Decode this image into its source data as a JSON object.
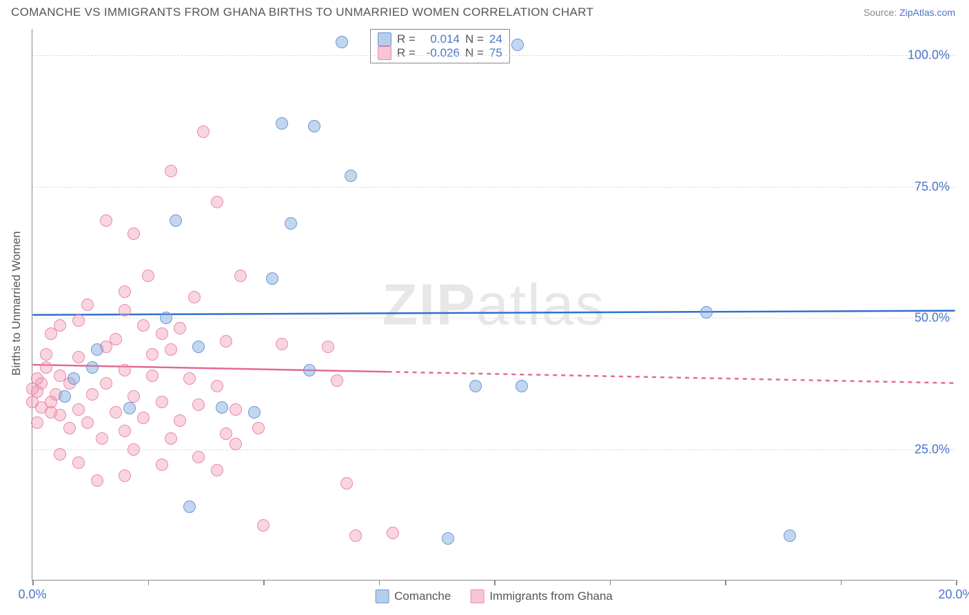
{
  "title": "COMANCHE VS IMMIGRANTS FROM GHANA BIRTHS TO UNMARRIED WOMEN CORRELATION CHART",
  "source_label": "Source: ",
  "source_link": "ZipAtlas.com",
  "y_axis_label": "Births to Unmarried Women",
  "watermark_bold": "ZIP",
  "watermark_rest": "atlas",
  "chart": {
    "type": "scatter",
    "xlim": [
      0,
      20
    ],
    "ylim": [
      0,
      105
    ],
    "x_ticks": [
      0,
      2.5,
      5,
      7.5,
      10,
      12.5,
      15,
      17.5,
      20
    ],
    "x_tick_labels": {
      "0": "0.0%",
      "20": "20.0%"
    },
    "y_ticks": [
      25,
      50,
      75,
      100
    ],
    "y_tick_labels": {
      "25": "25.0%",
      "50": "50.0%",
      "75": "75.0%",
      "100": "100.0%"
    },
    "background_color": "#ffffff",
    "grid_color": "#dddddd",
    "axis_color": "#888888",
    "point_radius": 9,
    "series": {
      "comanche": {
        "label": "Comanche",
        "fill_color": "#7aa4dc",
        "fill_opacity": 0.45,
        "stroke_color": "#6a98d4",
        "r_value": "0.014",
        "n_value": "24",
        "trend_color": "#2e6fd1",
        "trend_width": 2.5,
        "trend_y_start": 50.5,
        "trend_y_end": 51.3,
        "trend_dash_from": null,
        "points": [
          [
            6.7,
            102.5
          ],
          [
            10.5,
            102.0
          ],
          [
            5.4,
            87.0
          ],
          [
            6.1,
            86.5
          ],
          [
            3.1,
            68.5
          ],
          [
            6.9,
            77.0
          ],
          [
            5.6,
            68.0
          ],
          [
            5.2,
            57.5
          ],
          [
            1.4,
            44.0
          ],
          [
            3.6,
            44.5
          ],
          [
            1.3,
            40.5
          ],
          [
            0.9,
            38.5
          ],
          [
            4.1,
            33.0
          ],
          [
            4.8,
            32.0
          ],
          [
            9.6,
            37.0
          ],
          [
            10.6,
            37.0
          ],
          [
            14.6,
            51.0
          ],
          [
            2.1,
            32.8
          ],
          [
            3.4,
            14.0
          ],
          [
            9.0,
            8.0
          ],
          [
            16.4,
            8.5
          ],
          [
            0.7,
            35.0
          ],
          [
            6.0,
            40.0
          ],
          [
            2.9,
            50.0
          ]
        ]
      },
      "ghana": {
        "label": "Immigrants from Ghana",
        "fill_color": "#f096af",
        "fill_opacity": 0.4,
        "stroke_color": "#e88aa8",
        "r_value": "-0.026",
        "n_value": "75",
        "trend_color": "#e36a92",
        "trend_width": 2.5,
        "trend_y_start": 41.0,
        "trend_y_end": 37.5,
        "trend_dash_from": 7.7,
        "points": [
          [
            3.7,
            85.5
          ],
          [
            3.0,
            78.0
          ],
          [
            4.0,
            72.0
          ],
          [
            1.6,
            68.5
          ],
          [
            2.2,
            66.0
          ],
          [
            4.5,
            58.0
          ],
          [
            2.5,
            58.0
          ],
          [
            3.5,
            54.0
          ],
          [
            1.2,
            52.5
          ],
          [
            2.0,
            51.5
          ],
          [
            1.0,
            49.5
          ],
          [
            0.6,
            48.5
          ],
          [
            2.4,
            48.5
          ],
          [
            3.2,
            48.0
          ],
          [
            0.4,
            47.0
          ],
          [
            2.8,
            47.0
          ],
          [
            1.8,
            46.0
          ],
          [
            4.2,
            45.5
          ],
          [
            5.4,
            45.0
          ],
          [
            6.4,
            44.5
          ],
          [
            3.0,
            44.0
          ],
          [
            1.0,
            42.5
          ],
          [
            0.3,
            40.5
          ],
          [
            2.0,
            40.0
          ],
          [
            0.6,
            39.0
          ],
          [
            2.6,
            39.0
          ],
          [
            3.4,
            38.5
          ],
          [
            0.2,
            37.5
          ],
          [
            0.8,
            37.5
          ],
          [
            1.6,
            37.5
          ],
          [
            4.0,
            37.0
          ],
          [
            6.6,
            38.0
          ],
          [
            0.1,
            36.0
          ],
          [
            0.5,
            35.5
          ],
          [
            1.3,
            35.5
          ],
          [
            2.2,
            35.0
          ],
          [
            0.0,
            34.0
          ],
          [
            0.4,
            34.0
          ],
          [
            2.8,
            34.0
          ],
          [
            3.6,
            33.5
          ],
          [
            0.2,
            33.0
          ],
          [
            1.0,
            32.5
          ],
          [
            1.8,
            32.0
          ],
          [
            4.4,
            32.5
          ],
          [
            0.6,
            31.5
          ],
          [
            2.4,
            31.0
          ],
          [
            3.2,
            30.5
          ],
          [
            0.1,
            30.0
          ],
          [
            1.2,
            30.0
          ],
          [
            0.8,
            29.0
          ],
          [
            2.0,
            28.5
          ],
          [
            4.2,
            28.0
          ],
          [
            1.5,
            27.0
          ],
          [
            3.0,
            27.0
          ],
          [
            4.4,
            26.0
          ],
          [
            2.2,
            25.0
          ],
          [
            0.6,
            24.0
          ],
          [
            3.6,
            23.5
          ],
          [
            1.0,
            22.5
          ],
          [
            2.8,
            22.0
          ],
          [
            4.0,
            21.0
          ],
          [
            2.0,
            20.0
          ],
          [
            1.4,
            19.0
          ],
          [
            4.9,
            29.0
          ],
          [
            6.8,
            18.5
          ],
          [
            7.0,
            8.5
          ],
          [
            7.8,
            9.0
          ],
          [
            5.0,
            10.5
          ],
          [
            2.0,
            55.0
          ],
          [
            0.3,
            43.0
          ],
          [
            0.1,
            38.5
          ],
          [
            0.0,
            36.5
          ],
          [
            0.4,
            32.0
          ],
          [
            1.6,
            44.5
          ],
          [
            2.6,
            43.0
          ]
        ]
      }
    }
  },
  "legend_top": {
    "r_label": "R =",
    "n_label": "N ="
  }
}
